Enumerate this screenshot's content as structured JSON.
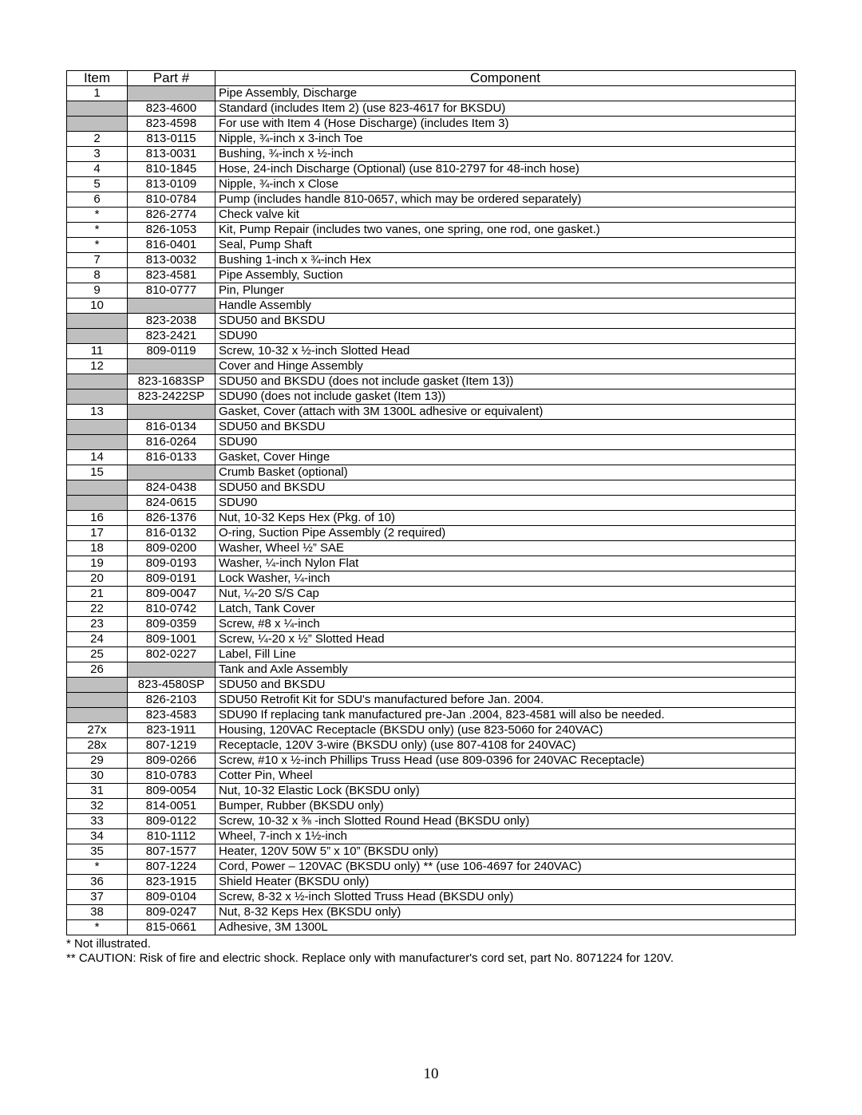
{
  "header": {
    "item": "Item",
    "part": "Part #",
    "component": "Component"
  },
  "shaded_color": "#bfbfbf",
  "rows": [
    {
      "item": "1",
      "part": "",
      "component": "Pipe Assembly, Discharge",
      "shaded": [
        1
      ]
    },
    {
      "item": "",
      "part": "823-4600",
      "component": "Standard (includes Item 2) (use 823-4617 for BKSDU)",
      "shaded": [
        0
      ]
    },
    {
      "item": "",
      "part": "823-4598",
      "component": "For use with Item 4 (Hose Discharge)   (includes Item 3)",
      "shaded": [
        0
      ]
    },
    {
      "item": "2",
      "part": "813-0115",
      "component": "Nipple, ¾-inch x 3-inch Toe"
    },
    {
      "item": "3",
      "part": "813-0031",
      "component": "Bushing, ¾-inch x ½-inch"
    },
    {
      "item": "4",
      "part": "810-1845",
      "component": "Hose, 24-inch Discharge (Optional) (use 810-2797 for 48-inch hose)"
    },
    {
      "item": "5",
      "part": "813-0109",
      "component": "Nipple, ¾-inch x Close"
    },
    {
      "item": "6",
      "part": "810-0784",
      "component": "Pump (includes handle 810-0657, which may be ordered separately)"
    },
    {
      "item": "*",
      "part": "826-2774",
      "component": "Check valve kit"
    },
    {
      "item": "*",
      "part": "826-1053",
      "component": "Kit, Pump Repair (includes two vanes, one spring, one rod, one gasket.)"
    },
    {
      "item": "*",
      "part": "816-0401",
      "component": "Seal, Pump Shaft"
    },
    {
      "item": "7",
      "part": "813-0032",
      "component": "Bushing 1-inch x ¾-inch Hex"
    },
    {
      "item": "8",
      "part": "823-4581",
      "component": "Pipe Assembly, Suction"
    },
    {
      "item": "9",
      "part": "810-0777",
      "component": "Pin, Plunger"
    },
    {
      "item": "10",
      "part": "",
      "component": "Handle Assembly",
      "shaded": [
        1
      ]
    },
    {
      "item": "",
      "part": "823-2038",
      "component": "SDU50 and BKSDU",
      "shaded": [
        0
      ]
    },
    {
      "item": "",
      "part": "823-2421",
      "component": "SDU90",
      "shaded": [
        0
      ]
    },
    {
      "item": "11",
      "part": "809-0119",
      "component": "Screw, 10-32 x ½-inch Slotted Head"
    },
    {
      "item": "12",
      "part": "",
      "component": "Cover and Hinge Assembly",
      "shaded": [
        1
      ]
    },
    {
      "item": "",
      "part": "823-1683SP",
      "component": "SDU50 and BKSDU (does not include gasket (Item 13))",
      "shaded": [
        0
      ]
    },
    {
      "item": "",
      "part": "823-2422SP",
      "component": "SDU90 (does not include gasket (Item 13))",
      "shaded": [
        0
      ]
    },
    {
      "item": "13",
      "part": "",
      "component": "Gasket, Cover (attach with 3M 1300L adhesive or equivalent)",
      "shaded": [
        1
      ]
    },
    {
      "item": "",
      "part": "816-0134",
      "component": "SDU50 and BKSDU",
      "shaded": [
        0
      ]
    },
    {
      "item": "",
      "part": "816-0264",
      "component": "SDU90",
      "shaded": [
        0
      ]
    },
    {
      "item": "14",
      "part": "816-0133",
      "component": "Gasket, Cover Hinge"
    },
    {
      "item": "15",
      "part": "",
      "component": "Crumb Basket (optional)",
      "shaded": [
        1
      ]
    },
    {
      "item": "",
      "part": "824-0438",
      "component": "SDU50 and BKSDU",
      "shaded": [
        0
      ]
    },
    {
      "item": "",
      "part": "824-0615",
      "component": "SDU90",
      "shaded": [
        0
      ]
    },
    {
      "item": "16",
      "part": "826-1376",
      "component": "Nut, 10-32 Keps Hex (Pkg. of 10)"
    },
    {
      "item": "17",
      "part": "816-0132",
      "component": "O-ring, Suction Pipe Assembly (2 required)"
    },
    {
      "item": "18",
      "part": "809-0200",
      "component": "Washer, Wheel ½” SAE"
    },
    {
      "item": "19",
      "part": "809-0193",
      "component": "Washer, ¼-inch Nylon Flat"
    },
    {
      "item": "20",
      "part": "809-0191",
      "component": "Lock Washer, ¼-inch"
    },
    {
      "item": "21",
      "part": "809-0047",
      "component": "Nut, ¼-20 S/S Cap"
    },
    {
      "item": "22",
      "part": "810-0742",
      "component": "Latch, Tank Cover"
    },
    {
      "item": "23",
      "part": "809-0359",
      "component": "Screw, #8 x ¼-inch"
    },
    {
      "item": "24",
      "part": "809-1001",
      "component": "Screw, ¼-20 x ½” Slotted Head"
    },
    {
      "item": "25",
      "part": "802-0227",
      "component": "Label, Fill Line"
    },
    {
      "item": "26",
      "part": "",
      "component": "Tank and Axle Assembly",
      "shaded": [
        1
      ]
    },
    {
      "item": "",
      "part": "823-4580SP",
      "component": "SDU50 and BKSDU",
      "shaded": [
        0
      ]
    },
    {
      "item": "",
      "part": "826-2103",
      "component": "SDU50 Retrofit Kit for SDU's manufactured before Jan. 2004.",
      "shaded": [
        0
      ]
    },
    {
      "item": "",
      "part": "823-4583",
      "component": "SDU90 If replacing tank manufactured pre-Jan    .2004, 823-4581 will also be needed.",
      "shaded": [
        0
      ]
    },
    {
      "item": "27x",
      "part": "823-1911",
      "component": "Housing, 120VAC Receptacle (BKSDU only) (use 823-5060 for 240VAC)"
    },
    {
      "item": "28x",
      "part": "807-1219",
      "component": "Receptacle, 120V 3-wire (BKSDU only) (use 807-4108 for 240VAC)"
    },
    {
      "item": "29",
      "part": "809-0266",
      "component": "Screw, #10 x ½-inch Phillips Truss Head (use 809-0396 for 240VAC Receptacle)"
    },
    {
      "item": "30",
      "part": "810-0783",
      "component": "Cotter Pin, Wheel"
    },
    {
      "item": "31",
      "part": "809-0054",
      "component": "Nut, 10-32 Elastic Lock (BKSDU only)"
    },
    {
      "item": "32",
      "part": "814-0051",
      "component": "Bumper, Rubber (BKSDU only)"
    },
    {
      "item": "33",
      "part": "809-0122",
      "component": "Screw, 10-32 x ⅜ -inch Slotted Round Head (BKSDU only)"
    },
    {
      "item": "34",
      "part": "810-1112",
      "component": "Wheel, 7-inch x 1½-inch"
    },
    {
      "item": "35",
      "part": "807-1577",
      "component": "Heater, 120V 50W 5” x 10” (BKSDU only)"
    },
    {
      "item": "*",
      "part": "807-1224",
      "component": "Cord, Power – 120VAC (BKSDU only) ** (use 106-4697 for 240VAC)"
    },
    {
      "item": "36",
      "part": "823-1915",
      "component": "Shield Heater (BKSDU only)"
    },
    {
      "item": "37",
      "part": "809-0104",
      "component": "Screw, 8-32 x ½-inch Slotted Truss Head (BKSDU only)"
    },
    {
      "item": "38",
      "part": "809-0247",
      "component": "Nut, 8-32 Keps Hex (BKSDU only)"
    },
    {
      "item": "*",
      "part": "815-0661",
      "component": "Adhesive, 3M 1300L"
    }
  ],
  "footnotes": {
    "line1": "* Not illustrated.",
    "line2": "** CAUTION: Risk of fire and electric shock. Replace only with manufacturer's cord set, part No. 8071224 for 120V."
  },
  "page_number": "10"
}
